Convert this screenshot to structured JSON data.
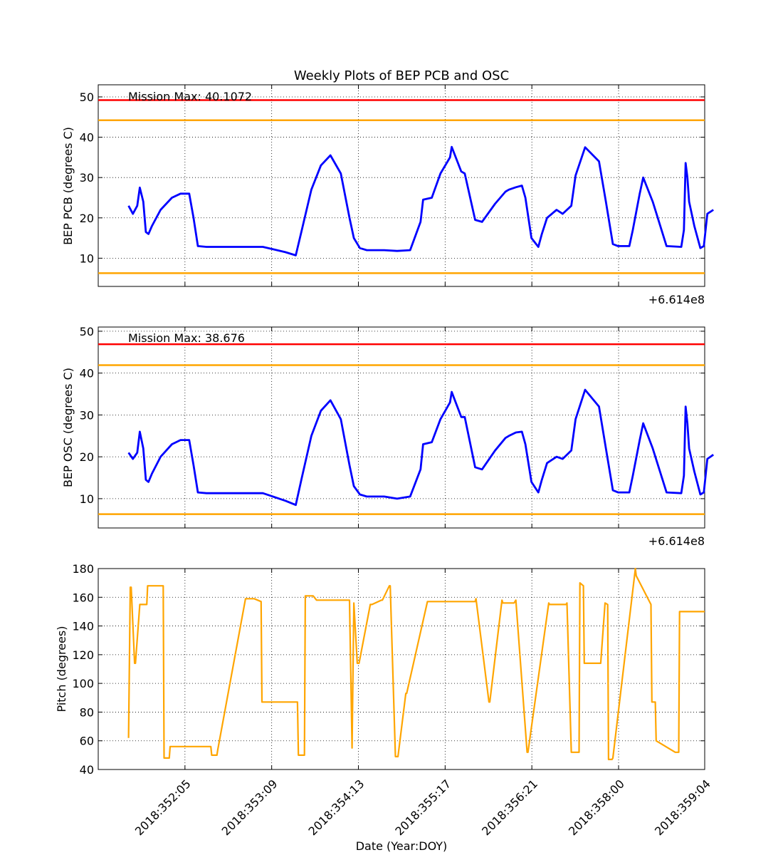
{
  "figure": {
    "title": "Weekly Plots of BEP PCB and OSC",
    "xlabel": "Date (Year:DOY)",
    "x_offset_text": "+6.614e8",
    "x_ticks": [
      "2018:352:05",
      "2018:353:09",
      "2018:354:13",
      "2018:355:17",
      "2018:356:21",
      "2018:358:00",
      "2018:359:04"
    ]
  },
  "colors": {
    "data_line": "#0000ff",
    "limit_red": "#ff0000",
    "limit_yellow": "#ffa500",
    "pitch_line": "#ffa500"
  },
  "chart_data": [
    {
      "type": "line",
      "name": "BEP PCB",
      "ylabel": "BEP PCB (degrees C)",
      "annotation": "Mission Max: 40.1072",
      "xlim": [
        2018.3515,
        2018.3585
      ],
      "ylim": [
        3,
        53
      ],
      "y_ticks": [
        10,
        20,
        30,
        40,
        50
      ],
      "limits": [
        {
          "value": 49.2,
          "color": "red"
        },
        {
          "value": 44.2,
          "color": "yellow"
        },
        {
          "value": 6.3,
          "color": "yellow"
        }
      ],
      "series": [
        {
          "x": [
            2018.35185,
            2018.3519,
            2018.35195,
            2018.35198,
            2018.35202,
            2018.35205,
            2018.35208,
            2018.35212,
            2018.35222,
            2018.35235,
            2018.35245,
            2018.35255,
            2018.3526,
            2018.35265,
            2018.35275,
            2018.35291,
            2018.35305,
            2018.3534,
            2018.35366,
            2018.35378,
            2018.35385,
            2018.35396,
            2018.35407,
            2018.35418,
            2018.3543,
            2018.3544,
            2018.35445,
            2018.35452,
            2018.3546,
            2018.3547,
            2018.3548,
            2018.35495,
            2018.3551,
            2018.35522,
            2018.35525,
            2018.35535,
            2018.35545,
            2018.35556,
            2018.35558,
            2018.35569,
            2018.35573,
            2018.35585,
            2018.35593,
            2018.35608,
            2018.3562,
            2018.35624,
            2018.35632,
            2018.35639,
            2018.35643,
            2018.3565,
            2018.35658,
            2018.35662,
            2018.35668,
            2018.35679,
            2018.35686,
            2018.35696,
            2018.35701,
            2018.35712,
            2018.35728,
            2018.35736,
            2018.35744,
            2018.3575,
            2018.35763,
            2018.35767,
            2018.35775,
            2018.35779,
            2018.3579,
            2018.35806,
            2018.35823,
            2018.35826,
            2018.35828,
            2018.3583,
            2018.35832,
            2018.35838,
            2018.35845,
            2018.35849,
            2018.35853,
            2018.3586
          ],
          "values": [
            23,
            21,
            23,
            27.5,
            24,
            16.5,
            16,
            18,
            22,
            25,
            26,
            26,
            20,
            13,
            12.8,
            12.8,
            12.8,
            12.8,
            11.5,
            10.7,
            17,
            27,
            33,
            35.5,
            31,
            20,
            15,
            12.5,
            12,
            12,
            12,
            11.8,
            12,
            19,
            24.5,
            25,
            31,
            35,
            37.6,
            31.5,
            31,
            19.5,
            19,
            23.5,
            26.5,
            27,
            27.6,
            28,
            25,
            15,
            12.8,
            16,
            20,
            22,
            21,
            23,
            30.5,
            37.5,
            34,
            24,
            13.5,
            13,
            13,
            17,
            26,
            30,
            24,
            13,
            12.8,
            17,
            33.6,
            30,
            24,
            18,
            12.5,
            13,
            21,
            22
          ]
        }
      ]
    },
    {
      "type": "line",
      "name": "BEP OSC",
      "ylabel": "BEP OSC (degrees C)",
      "annotation": "Mission Max: 38.676",
      "xlim": [
        2018.3515,
        2018.3585
      ],
      "ylim": [
        3,
        51
      ],
      "y_ticks": [
        10,
        20,
        30,
        40,
        50
      ],
      "limits": [
        {
          "value": 46.9,
          "color": "red"
        },
        {
          "value": 41.9,
          "color": "yellow"
        },
        {
          "value": 6.3,
          "color": "yellow"
        }
      ],
      "series": [
        {
          "x": [
            2018.35185,
            2018.3519,
            2018.35195,
            2018.35198,
            2018.35202,
            2018.35205,
            2018.35208,
            2018.35212,
            2018.35222,
            2018.35235,
            2018.35245,
            2018.35255,
            2018.3526,
            2018.35265,
            2018.35275,
            2018.35291,
            2018.35305,
            2018.3534,
            2018.35366,
            2018.35378,
            2018.35385,
            2018.35396,
            2018.35407,
            2018.35418,
            2018.3543,
            2018.3544,
            2018.35445,
            2018.35452,
            2018.3546,
            2018.3547,
            2018.3548,
            2018.35495,
            2018.3551,
            2018.35522,
            2018.35525,
            2018.35535,
            2018.35545,
            2018.35556,
            2018.35558,
            2018.35569,
            2018.35573,
            2018.35585,
            2018.35593,
            2018.35608,
            2018.3562,
            2018.35624,
            2018.35632,
            2018.35639,
            2018.35643,
            2018.3565,
            2018.35658,
            2018.35662,
            2018.35668,
            2018.35679,
            2018.35686,
            2018.35696,
            2018.35701,
            2018.35712,
            2018.35728,
            2018.35736,
            2018.35744,
            2018.3575,
            2018.35763,
            2018.35767,
            2018.35775,
            2018.35779,
            2018.3579,
            2018.35806,
            2018.35823,
            2018.35826,
            2018.35828,
            2018.3583,
            2018.35832,
            2018.35838,
            2018.35845,
            2018.35849,
            2018.35853,
            2018.3586
          ],
          "values": [
            21,
            19.5,
            21,
            26,
            22,
            14.5,
            14,
            16,
            20,
            23,
            24,
            24,
            18,
            11.5,
            11.3,
            11.3,
            11.3,
            11.3,
            9.5,
            8.5,
            15,
            25,
            31,
            33.5,
            29,
            18,
            13,
            11,
            10.5,
            10.5,
            10.5,
            10,
            10.5,
            17,
            23,
            23.5,
            29,
            33,
            35.5,
            29.5,
            29.5,
            17.5,
            17,
            21.5,
            24.5,
            25,
            25.8,
            26,
            23,
            14,
            11.5,
            14.5,
            18.5,
            20,
            19.5,
            21.5,
            29,
            36,
            32,
            22,
            12,
            11.5,
            11.5,
            15.5,
            24,
            28,
            22,
            11.5,
            11.3,
            15.5,
            32,
            28,
            22,
            16.5,
            11,
            11.5,
            19.5,
            20.5
          ]
        }
      ]
    },
    {
      "type": "line",
      "name": "Pitch",
      "ylabel": "Pitch (degrees)",
      "xlim": [
        2018.3515,
        2018.3585
      ],
      "ylim": [
        40,
        180
      ],
      "y_ticks": [
        40,
        60,
        80,
        100,
        120,
        140,
        160,
        180
      ],
      "series": [
        {
          "x": [
            2018.35185,
            2018.35187,
            2018.35188,
            2018.35192,
            2018.35193,
            2018.35198,
            2018.35199,
            2018.35206,
            2018.35207,
            2018.35225,
            2018.35226,
            2018.35232,
            2018.35233,
            2018.3524,
            2018.35241,
            2018.3528,
            2018.35281,
            2018.35287,
            2018.35288,
            2018.3532,
            2018.3533,
            2018.35338,
            2018.35339,
            2018.3538,
            2018.35381,
            2018.35388,
            2018.35389,
            2018.35398,
            2018.35402,
            2018.35403,
            2018.3544,
            2018.35443,
            2018.35445,
            2018.35449,
            2018.35451,
            2018.35464,
            2018.35466,
            2018.35477,
            2018.35478,
            2018.35486,
            2018.35487,
            2018.35493,
            2018.35496,
            2018.35505,
            2018.35506,
            2018.3553,
            2018.35531,
            2018.35585,
            2018.35586,
            2018.35601,
            2018.35602,
            2018.35616,
            2018.35617,
            2018.3563,
            2018.35632,
            2018.35645,
            2018.35646,
            2018.3567,
            2018.35671,
            2018.3569,
            2018.35691,
            2018.35696,
            2018.35697,
            2018.35705,
            2018.35706,
            2018.3571,
            2018.35711,
            2018.3573,
            2018.35735,
            2018.35738,
            2018.35739,
            2018.35743,
            2018.35744,
            2018.3577,
            2018.35771,
            2018.35788,
            2018.35789,
            2018.35793,
            2018.35794,
            2018.35816,
            2018.35817,
            2018.3582,
            2018.35821,
            2018.3585
          ],
          "values": [
            62,
            167,
            167,
            114,
            114,
            155,
            155,
            155,
            168,
            168,
            48,
            48,
            56,
            56,
            56,
            56,
            50,
            50,
            54,
            159,
            159,
            157,
            87,
            87,
            50,
            50,
            161,
            161,
            158,
            158,
            158,
            55,
            156,
            114,
            114,
            155,
            155,
            158,
            158,
            168,
            168,
            49,
            49,
            93,
            93,
            157,
            157,
            157,
            159,
            87,
            87,
            158,
            156,
            156,
            158,
            52,
            52,
            156,
            155,
            155,
            156,
            52,
            52,
            52,
            170,
            168,
            114,
            114,
            156,
            155,
            47,
            47,
            48,
            180,
            175,
            155,
            87,
            87,
            60,
            52,
            52,
            52,
            150,
            150
          ]
        }
      ]
    }
  ]
}
